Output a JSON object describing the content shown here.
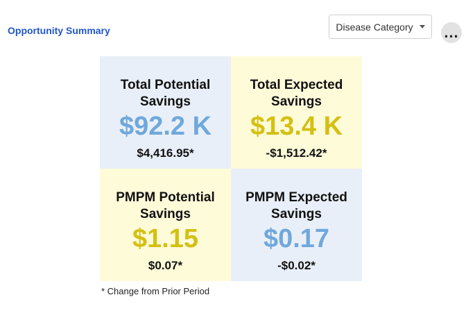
{
  "header": {
    "title": "Opportunity Summary",
    "dropdown_label": "Disease Category",
    "more_label": "..."
  },
  "tiles": [
    {
      "label_line1": "Total Potential",
      "label_line2": "Savings",
      "value": "$92.2 K",
      "change": "$4,416.95*"
    },
    {
      "label_line1": "Total Expected",
      "label_line2": "Savings",
      "value": "$13.4 K",
      "change": "-$1,512.42*"
    },
    {
      "label_line1": "PMPM Potential",
      "label_line2": "Savings",
      "value": "$1.15",
      "change": "$0.07*"
    },
    {
      "label_line1": "PMPM Expected",
      "label_line2": "Savings",
      "value": "$0.17",
      "change": "-$0.02*"
    }
  ],
  "footnote": "* Change from Prior Period",
  "colors": {
    "title": "#2156c9",
    "tile_blue_bg": "#e9eff8",
    "tile_yellow_bg": "#fefbd9",
    "value_blue": "#6fa8dc",
    "value_gold": "#d4c011"
  }
}
